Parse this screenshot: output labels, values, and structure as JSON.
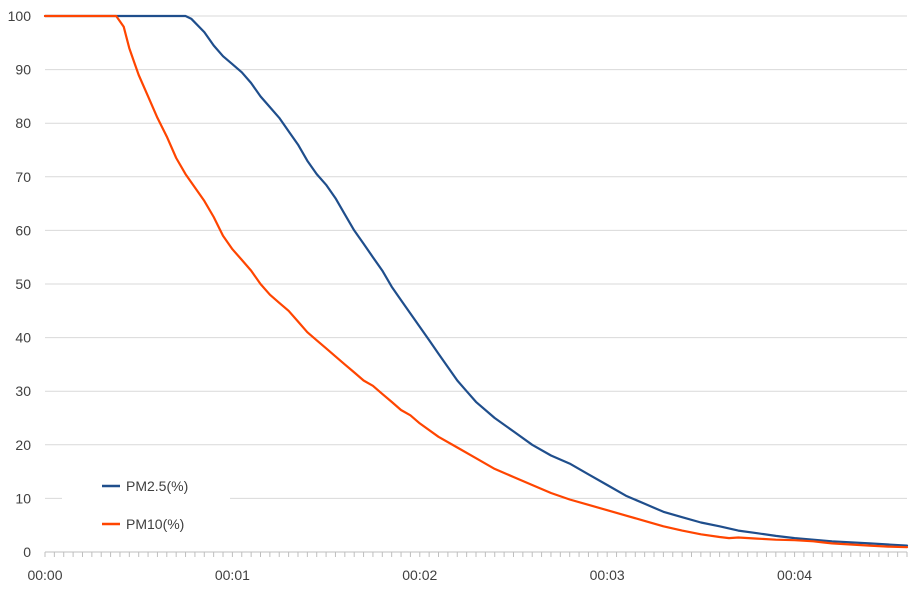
{
  "chart_data": {
    "type": "line",
    "title": "",
    "xlabel": "",
    "ylabel": "",
    "xlim": [
      0,
      4.6
    ],
    "ylim": [
      0,
      100
    ],
    "y_ticks": [
      0,
      10,
      20,
      30,
      40,
      50,
      60,
      70,
      80,
      90,
      100
    ],
    "x_ticks": [
      {
        "value": 0,
        "label": "00:00"
      },
      {
        "value": 1,
        "label": "00:01"
      },
      {
        "value": 2,
        "label": "00:02"
      },
      {
        "value": 3,
        "label": "00:03"
      },
      {
        "value": 4,
        "label": "00:04"
      }
    ],
    "x_unit": "minutes",
    "grid": true,
    "legend_position": "bottom-left",
    "series": [
      {
        "name": "PM2.5(%)",
        "color": "#1f4e8c",
        "points": [
          [
            0,
            100
          ],
          [
            0.75,
            100
          ],
          [
            0.78,
            99.5
          ],
          [
            0.85,
            97
          ],
          [
            0.9,
            94.5
          ],
          [
            0.95,
            92.5
          ],
          [
            1.0,
            91
          ],
          [
            1.05,
            89.5
          ],
          [
            1.1,
            87.5
          ],
          [
            1.15,
            85
          ],
          [
            1.2,
            83
          ],
          [
            1.25,
            81
          ],
          [
            1.3,
            78.5
          ],
          [
            1.35,
            76
          ],
          [
            1.4,
            73
          ],
          [
            1.45,
            70.5
          ],
          [
            1.5,
            68.5
          ],
          [
            1.55,
            66
          ],
          [
            1.6,
            63
          ],
          [
            1.65,
            60
          ],
          [
            1.7,
            57.5
          ],
          [
            1.75,
            55
          ],
          [
            1.8,
            52.5
          ],
          [
            1.85,
            49.5
          ],
          [
            1.9,
            47
          ],
          [
            1.95,
            44.5
          ],
          [
            2.0,
            42
          ],
          [
            2.05,
            39.5
          ],
          [
            2.1,
            37
          ],
          [
            2.15,
            34.5
          ],
          [
            2.2,
            32
          ],
          [
            2.25,
            30
          ],
          [
            2.3,
            28
          ],
          [
            2.4,
            25
          ],
          [
            2.5,
            22.5
          ],
          [
            2.6,
            20
          ],
          [
            2.7,
            18
          ],
          [
            2.8,
            16.5
          ],
          [
            2.9,
            14.5
          ],
          [
            3.0,
            12.5
          ],
          [
            3.1,
            10.5
          ],
          [
            3.2,
            9
          ],
          [
            3.3,
            7.5
          ],
          [
            3.4,
            6.5
          ],
          [
            3.5,
            5.5
          ],
          [
            3.6,
            4.8
          ],
          [
            3.7,
            4
          ],
          [
            3.8,
            3.5
          ],
          [
            3.9,
            3
          ],
          [
            4.0,
            2.6
          ],
          [
            4.1,
            2.3
          ],
          [
            4.2,
            2
          ],
          [
            4.3,
            1.8
          ],
          [
            4.4,
            1.6
          ],
          [
            4.5,
            1.4
          ],
          [
            4.6,
            1.2
          ]
        ]
      },
      {
        "name": "PM10(%)",
        "color": "#ff4500",
        "points": [
          [
            0,
            100
          ],
          [
            0.38,
            100
          ],
          [
            0.42,
            98
          ],
          [
            0.45,
            94
          ],
          [
            0.48,
            91
          ],
          [
            0.5,
            89
          ],
          [
            0.55,
            85
          ],
          [
            0.6,
            81
          ],
          [
            0.65,
            77.5
          ],
          [
            0.7,
            73.5
          ],
          [
            0.75,
            70.5
          ],
          [
            0.8,
            68
          ],
          [
            0.85,
            65.5
          ],
          [
            0.9,
            62.5
          ],
          [
            0.95,
            59
          ],
          [
            1.0,
            56.5
          ],
          [
            1.05,
            54.5
          ],
          [
            1.1,
            52.5
          ],
          [
            1.15,
            50
          ],
          [
            1.2,
            48
          ],
          [
            1.25,
            46.5
          ],
          [
            1.3,
            45
          ],
          [
            1.35,
            43
          ],
          [
            1.4,
            41
          ],
          [
            1.45,
            39.5
          ],
          [
            1.5,
            38
          ],
          [
            1.55,
            36.5
          ],
          [
            1.6,
            35
          ],
          [
            1.65,
            33.5
          ],
          [
            1.7,
            32
          ],
          [
            1.75,
            31
          ],
          [
            1.8,
            29.5
          ],
          [
            1.85,
            28
          ],
          [
            1.9,
            26.5
          ],
          [
            1.95,
            25.5
          ],
          [
            2.0,
            24
          ],
          [
            2.1,
            21.5
          ],
          [
            2.2,
            19.5
          ],
          [
            2.3,
            17.5
          ],
          [
            2.4,
            15.5
          ],
          [
            2.5,
            14
          ],
          [
            2.6,
            12.5
          ],
          [
            2.7,
            11
          ],
          [
            2.8,
            9.8
          ],
          [
            2.9,
            8.8
          ],
          [
            3.0,
            7.8
          ],
          [
            3.1,
            6.8
          ],
          [
            3.2,
            5.8
          ],
          [
            3.3,
            4.8
          ],
          [
            3.4,
            4
          ],
          [
            3.5,
            3.3
          ],
          [
            3.6,
            2.8
          ],
          [
            3.65,
            2.6
          ],
          [
            3.7,
            2.7
          ],
          [
            3.8,
            2.5
          ],
          [
            3.9,
            2.3
          ],
          [
            4.0,
            2.2
          ],
          [
            4.1,
            2
          ],
          [
            4.15,
            1.8
          ],
          [
            4.2,
            1.6
          ],
          [
            4.3,
            1.4
          ],
          [
            4.4,
            1.2
          ],
          [
            4.5,
            1.0
          ],
          [
            4.6,
            0.9
          ]
        ]
      }
    ]
  }
}
